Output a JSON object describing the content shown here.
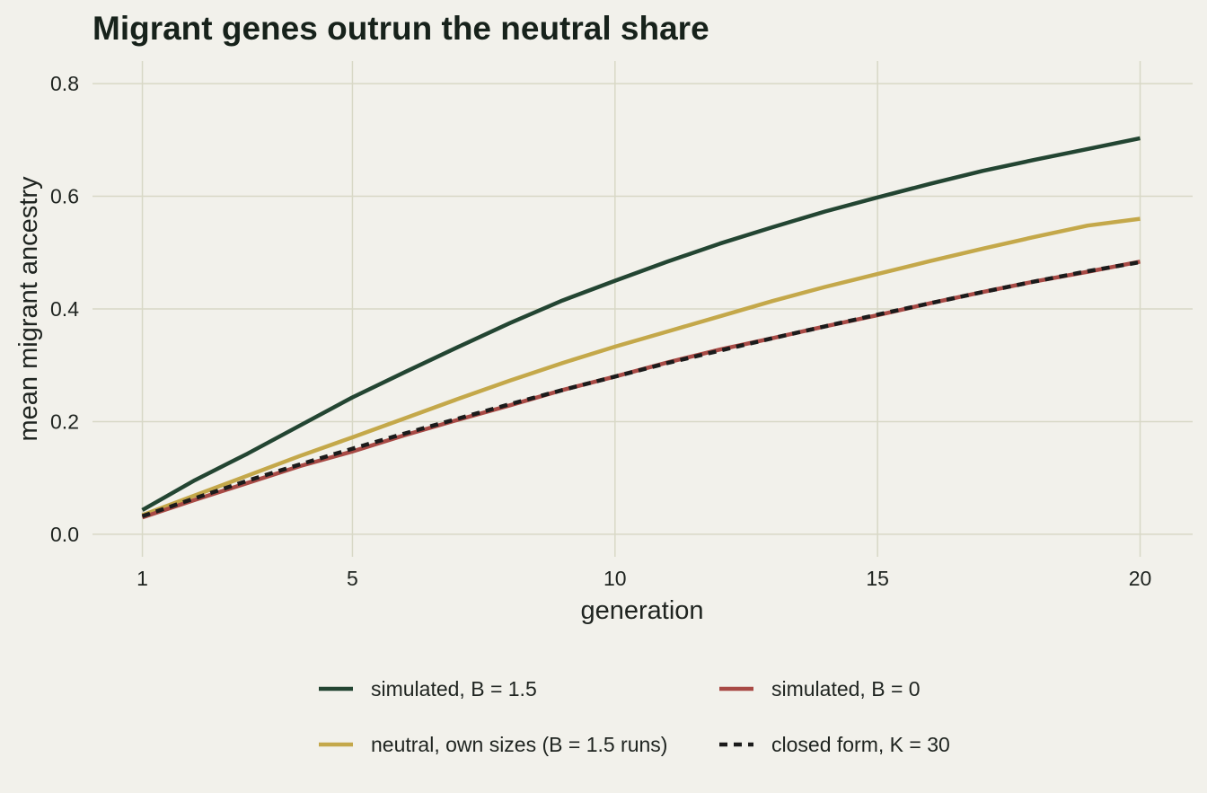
{
  "colors": {
    "background": "#f2f1eb",
    "grid": "#d8d8c6",
    "text": "#1f2420",
    "title": "#17221b"
  },
  "chart_data": {
    "type": "line",
    "title": "Migrant genes outrun the neutral share",
    "xlabel": "generation",
    "ylabel": "mean migrant ancestry",
    "xlim": [
      0.05,
      21
    ],
    "ylim": [
      -0.04,
      0.84
    ],
    "xticks": [
      1,
      5,
      10,
      15,
      20
    ],
    "yticks": [
      0.0,
      0.2,
      0.4,
      0.6,
      0.8
    ],
    "ytick_labels": [
      "0.0",
      "0.2",
      "0.4",
      "0.6",
      "0.8"
    ],
    "grid": true,
    "legend_position": "bottom",
    "x": [
      1,
      2,
      3,
      4,
      5,
      6,
      7,
      8,
      9,
      10,
      11,
      12,
      13,
      14,
      15,
      16,
      17,
      18,
      19,
      20
    ],
    "series": [
      {
        "name": "simulated, B = 1.5",
        "color": "#234532",
        "dash": "solid",
        "values": [
          0.043,
          0.096,
          0.143,
          0.193,
          0.243,
          0.288,
          0.332,
          0.375,
          0.415,
          0.45,
          0.484,
          0.516,
          0.545,
          0.573,
          0.598,
          0.622,
          0.645,
          0.665,
          0.684,
          0.703
        ]
      },
      {
        "name": "simulated, B = 0",
        "color": "#a84a45",
        "dash": "solid",
        "values": [
          0.03,
          0.061,
          0.091,
          0.121,
          0.147,
          0.176,
          0.203,
          0.229,
          0.256,
          0.28,
          0.305,
          0.328,
          0.348,
          0.369,
          0.389,
          0.41,
          0.43,
          0.449,
          0.466,
          0.484
        ]
      },
      {
        "name": "neutral, own sizes (B = 1.5 runs)",
        "color": "#c4a84a",
        "dash": "solid",
        "values": [
          0.034,
          0.069,
          0.104,
          0.139,
          0.172,
          0.206,
          0.24,
          0.273,
          0.304,
          0.333,
          0.36,
          0.387,
          0.414,
          0.439,
          0.462,
          0.485,
          0.507,
          0.528,
          0.548,
          0.56
        ]
      },
      {
        "name": "closed form, K = 30",
        "color": "#1b1b1b",
        "dash": "dashed",
        "values": [
          0.032,
          0.064,
          0.095,
          0.124,
          0.152,
          0.179,
          0.205,
          0.231,
          0.256,
          0.28,
          0.304,
          0.326,
          0.348,
          0.369,
          0.39,
          0.41,
          0.43,
          0.449,
          0.467,
          0.483
        ]
      }
    ],
    "legend_order": [
      0,
      1,
      2,
      3
    ]
  }
}
